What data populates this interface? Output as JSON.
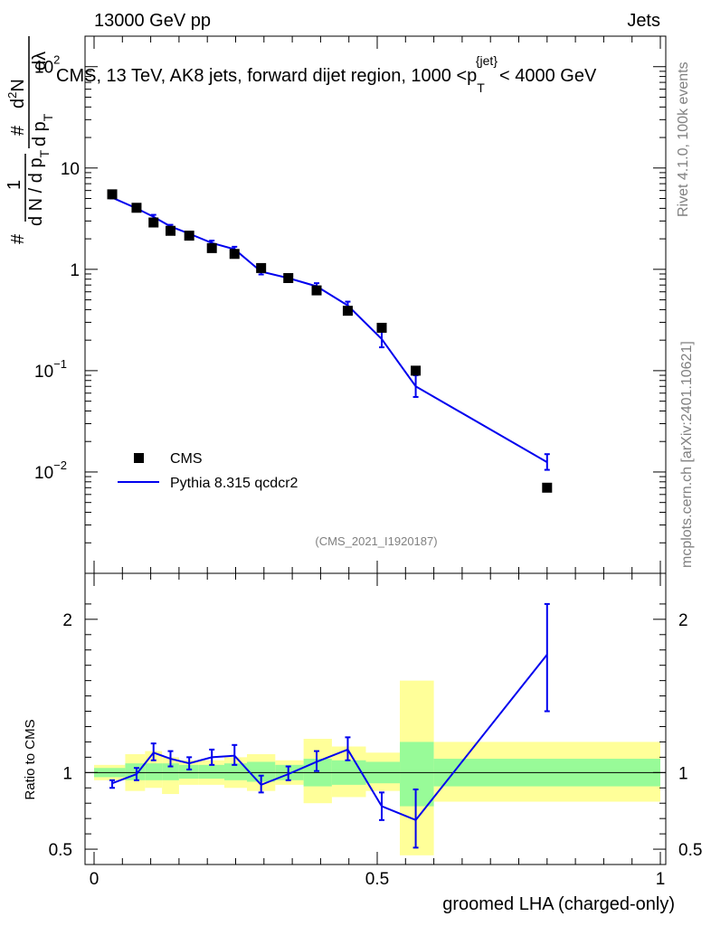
{
  "header": {
    "left": "13000 GeV pp",
    "right": "Jets",
    "title": "CMS, 13 TeV, AK8 jets, forward dijet region, 1000 <p",
    "title_sub": "T",
    "title_sup": "{jet}",
    "title_end": "< 4000 GeV"
  },
  "side": {
    "rivet": "Rivet 4.1.0,  100k events",
    "mcplots": "mcplots.cern.ch [arXiv:2401.10621]"
  },
  "analysis_id": "(CMS_2021_I1920187)",
  "ylabel_top": {
    "hash1": "#",
    "n1": "1",
    "dn": "d N / d p",
    "dn_sub": "T",
    "hash2": "#",
    "d2n": "d",
    "d2n_sup": "2",
    "d2n_end": "N",
    "dpt": "d p",
    "dpt_sub": "T",
    "dl": "dλ"
  },
  "ylabel_bottom": "Ratio to CMS",
  "xlabel": "groomed LHA (charged-only)",
  "legend": {
    "cms": "CMS",
    "mc": "Pythia 8.315 qcdcr2"
  },
  "colors": {
    "data": "#000000",
    "mc": "#0000ee",
    "band_inner": "#98fb98",
    "band_outer": "#ffff99"
  },
  "chart_data": [
    {
      "type": "scatter",
      "name": "main",
      "yscale": "log",
      "xlim": [
        0,
        1
      ],
      "ylim": [
        0.001,
        200
      ],
      "yticks": [
        {
          "value": 0.01,
          "base": "10",
          "exp": "−2"
        },
        {
          "value": 0.1,
          "base": "10",
          "exp": "−1"
        },
        {
          "value": 1,
          "base": "1",
          "exp": ""
        },
        {
          "value": 10,
          "base": "10",
          "exp": ""
        },
        {
          "value": 100,
          "base": "10",
          "exp": "2"
        }
      ],
      "series": [
        {
          "name": "CMS",
          "x": [
            0.032,
            0.075,
            0.105,
            0.135,
            0.168,
            0.208,
            0.248,
            0.295,
            0.343,
            0.393,
            0.448,
            0.508,
            0.568,
            0.8
          ],
          "y": [
            5.5,
            4.05,
            2.9,
            2.4,
            2.15,
            1.62,
            1.42,
            1.03,
            0.82,
            0.62,
            0.39,
            0.265,
            0.1,
            0.007
          ]
        },
        {
          "name": "Pythia 8.315 qcdcr2",
          "x": [
            0.032,
            0.075,
            0.105,
            0.135,
            0.168,
            0.208,
            0.248,
            0.295,
            0.343,
            0.393,
            0.448,
            0.508,
            0.568,
            0.8
          ],
          "y": [
            5.1,
            4.0,
            3.3,
            2.65,
            2.25,
            1.82,
            1.58,
            0.95,
            0.82,
            0.68,
            0.44,
            0.205,
            0.07,
            0.0125
          ],
          "yerr_lo": [
            5.0,
            3.92,
            3.15,
            2.55,
            2.18,
            1.74,
            1.49,
            0.89,
            0.79,
            0.64,
            0.41,
            0.17,
            0.055,
            0.0105
          ],
          "yerr_hi": [
            5.2,
            4.1,
            3.45,
            2.75,
            2.32,
            1.92,
            1.67,
            1.02,
            0.86,
            0.73,
            0.48,
            0.245,
            0.09,
            0.015
          ]
        }
      ]
    },
    {
      "type": "line",
      "name": "ratio",
      "ylabel": "Ratio to CMS",
      "xlim": [
        0,
        1
      ],
      "ylim": [
        0.4,
        2.3
      ],
      "yticks": [
        {
          "value": 0.5,
          "label": "0.5"
        },
        {
          "value": 1,
          "label": "1"
        },
        {
          "value": 2,
          "label": "2"
        }
      ],
      "xticks": [
        {
          "value": 0,
          "label": "0"
        },
        {
          "value": 0.5,
          "label": "0.5"
        },
        {
          "value": 1,
          "label": "1"
        }
      ],
      "bands": [
        {
          "x0": 0.0,
          "x1": 0.055,
          "in_lo": 0.97,
          "in_hi": 1.03,
          "out_lo": 0.95,
          "out_hi": 1.05
        },
        {
          "x0": 0.055,
          "x1": 0.09,
          "in_lo": 0.95,
          "in_hi": 1.06,
          "out_lo": 0.88,
          "out_hi": 1.12
        },
        {
          "x0": 0.09,
          "x1": 0.12,
          "in_lo": 0.95,
          "in_hi": 1.06,
          "out_lo": 0.9,
          "out_hi": 1.14
        },
        {
          "x0": 0.12,
          "x1": 0.15,
          "in_lo": 0.95,
          "in_hi": 1.06,
          "out_lo": 0.86,
          "out_hi": 1.1
        },
        {
          "x0": 0.15,
          "x1": 0.185,
          "in_lo": 0.96,
          "in_hi": 1.05,
          "out_lo": 0.92,
          "out_hi": 1.08
        },
        {
          "x0": 0.185,
          "x1": 0.23,
          "in_lo": 0.96,
          "in_hi": 1.05,
          "out_lo": 0.92,
          "out_hi": 1.08
        },
        {
          "x0": 0.23,
          "x1": 0.27,
          "in_lo": 0.95,
          "in_hi": 1.06,
          "out_lo": 0.9,
          "out_hi": 1.1
        },
        {
          "x0": 0.27,
          "x1": 0.32,
          "in_lo": 0.94,
          "in_hi": 1.07,
          "out_lo": 0.88,
          "out_hi": 1.12
        },
        {
          "x0": 0.32,
          "x1": 0.37,
          "in_lo": 0.95,
          "in_hi": 1.05,
          "out_lo": 0.92,
          "out_hi": 1.08
        },
        {
          "x0": 0.37,
          "x1": 0.42,
          "in_lo": 0.91,
          "in_hi": 1.09,
          "out_lo": 0.8,
          "out_hi": 1.22
        },
        {
          "x0": 0.42,
          "x1": 0.48,
          "in_lo": 0.92,
          "in_hi": 1.08,
          "out_lo": 0.84,
          "out_hi": 1.17
        },
        {
          "x0": 0.48,
          "x1": 0.54,
          "in_lo": 0.93,
          "in_hi": 1.07,
          "out_lo": 0.88,
          "out_hi": 1.13
        },
        {
          "x0": 0.54,
          "x1": 0.6,
          "in_lo": 0.78,
          "in_hi": 1.2,
          "out_lo": 0.46,
          "out_hi": 1.6
        },
        {
          "x0": 0.6,
          "x1": 1.0,
          "in_lo": 0.91,
          "in_hi": 1.09,
          "out_lo": 0.81,
          "out_hi": 1.2
        }
      ],
      "series": [
        {
          "name": "Pythia 8.315 qcdcr2",
          "x": [
            0.032,
            0.075,
            0.105,
            0.135,
            0.168,
            0.208,
            0.248,
            0.295,
            0.343,
            0.393,
            0.448,
            0.508,
            0.568,
            0.8
          ],
          "y": [
            0.93,
            0.99,
            1.13,
            1.09,
            1.06,
            1.1,
            1.11,
            0.92,
            0.99,
            1.07,
            1.15,
            0.78,
            0.69,
            1.77
          ],
          "yerr_lo": [
            0.9,
            0.95,
            1.08,
            1.04,
            1.02,
            1.05,
            1.05,
            0.87,
            0.95,
            1.01,
            1.08,
            0.69,
            0.51,
            1.4
          ],
          "yerr_hi": [
            0.95,
            1.03,
            1.19,
            1.14,
            1.1,
            1.15,
            1.18,
            0.98,
            1.04,
            1.14,
            1.23,
            0.87,
            0.89,
            2.1
          ]
        }
      ]
    }
  ]
}
